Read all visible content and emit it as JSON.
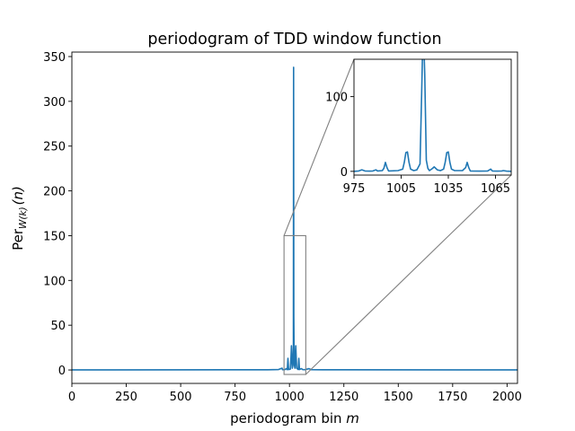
{
  "chart_data": [
    {
      "type": "line",
      "title": "periodogram of TDD window function",
      "xlabel_text": "periodogram bin ",
      "xlabel_var": "m",
      "ylabel_pre": "Per",
      "ylabel_sub": "W(k)",
      "ylabel_arg": "(n)",
      "xlim": [
        0,
        2048
      ],
      "ylim": [
        -15,
        355
      ],
      "xticks": [
        0,
        250,
        500,
        750,
        1000,
        1250,
        1500,
        1750,
        2000
      ],
      "yticks": [
        0,
        50,
        100,
        150,
        200,
        250,
        300,
        350
      ],
      "series": [
        {
          "color": "#1f77b4",
          "points": [
            [
              0,
              0.1
            ],
            [
              900,
              0.2
            ],
            [
              950,
              0.5
            ],
            [
              966,
              2
            ],
            [
              968,
              0.3
            ],
            [
              980,
              0.5
            ],
            [
              985,
              1.5
            ],
            [
              990,
              0.3
            ],
            [
              993,
              13
            ],
            [
              996,
              0.5
            ],
            [
              1004,
              1
            ],
            [
              1007,
              14
            ],
            [
              1009,
              27
            ],
            [
              1011,
              14
            ],
            [
              1013,
              2
            ],
            [
              1016,
              5
            ],
            [
              1018,
              28
            ],
            [
              1019,
              338
            ],
            [
              1020,
              60
            ],
            [
              1021,
              27
            ],
            [
              1023,
              5
            ],
            [
              1025,
              2
            ],
            [
              1027,
              14
            ],
            [
              1029,
              27
            ],
            [
              1031,
              14
            ],
            [
              1033,
              2
            ],
            [
              1040,
              0.5
            ],
            [
              1043,
              13
            ],
            [
              1046,
              0.5
            ],
            [
              1050,
              1
            ],
            [
              1055,
              1.5
            ],
            [
              1060,
              0.5
            ],
            [
              1070,
              0.3
            ],
            [
              1090,
              1.5
            ],
            [
              1100,
              0.3
            ],
            [
              1150,
              0.2
            ],
            [
              2048,
              0.1
            ]
          ]
        }
      ],
      "highlight_box": {
        "xrange": [
          975,
          1075
        ],
        "yrange": [
          -5,
          150
        ]
      }
    },
    {
      "type": "line",
      "role": "inset",
      "xlim": [
        975,
        1075
      ],
      "ylim": [
        -5,
        150
      ],
      "xticks": [
        975,
        1005,
        1035,
        1065
      ],
      "yticks": [
        0,
        100
      ],
      "series": [
        {
          "color": "#1f77b4",
          "points": [
            [
              975,
              0
            ],
            [
              978,
              0.5
            ],
            [
              980,
              2
            ],
            [
              982,
              0.5
            ],
            [
              985,
              0.3
            ],
            [
              987,
              0.5
            ],
            [
              989,
              2
            ],
            [
              990,
              0.5
            ],
            [
              993,
              1
            ],
            [
              994,
              4
            ],
            [
              995,
              12
            ],
            [
              996,
              5
            ],
            [
              997,
              0.5
            ],
            [
              1003,
              1
            ],
            [
              1006,
              3
            ],
            [
              1007,
              12
            ],
            [
              1008,
              25
            ],
            [
              1009,
              26
            ],
            [
              1010,
              12
            ],
            [
              1011,
              3
            ],
            [
              1013,
              1
            ],
            [
              1015,
              2
            ],
            [
              1016,
              6
            ],
            [
              1017,
              10
            ],
            [
              1018,
              100
            ],
            [
              1019,
              200
            ],
            [
              1020,
              130
            ],
            [
              1021,
              15
            ],
            [
              1022,
              4
            ],
            [
              1023,
              1
            ],
            [
              1025,
              4
            ],
            [
              1026,
              6
            ],
            [
              1027,
              4
            ],
            [
              1028,
              2
            ],
            [
              1030,
              1
            ],
            [
              1032,
              3
            ],
            [
              1033,
              12
            ],
            [
              1034,
              25
            ],
            [
              1035,
              26
            ],
            [
              1036,
              12
            ],
            [
              1037,
              3
            ],
            [
              1039,
              1
            ],
            [
              1044,
              1
            ],
            [
              1046,
              5
            ],
            [
              1047,
              12
            ],
            [
              1048,
              5
            ],
            [
              1049,
              0.5
            ],
            [
              1055,
              0.3
            ],
            [
              1060,
              0.5
            ],
            [
              1062,
              3
            ],
            [
              1063,
              0.5
            ],
            [
              1066,
              0.3
            ],
            [
              1069,
              0.5
            ],
            [
              1070,
              1
            ],
            [
              1072,
              0.3
            ],
            [
              1075,
              0
            ]
          ]
        }
      ]
    }
  ]
}
